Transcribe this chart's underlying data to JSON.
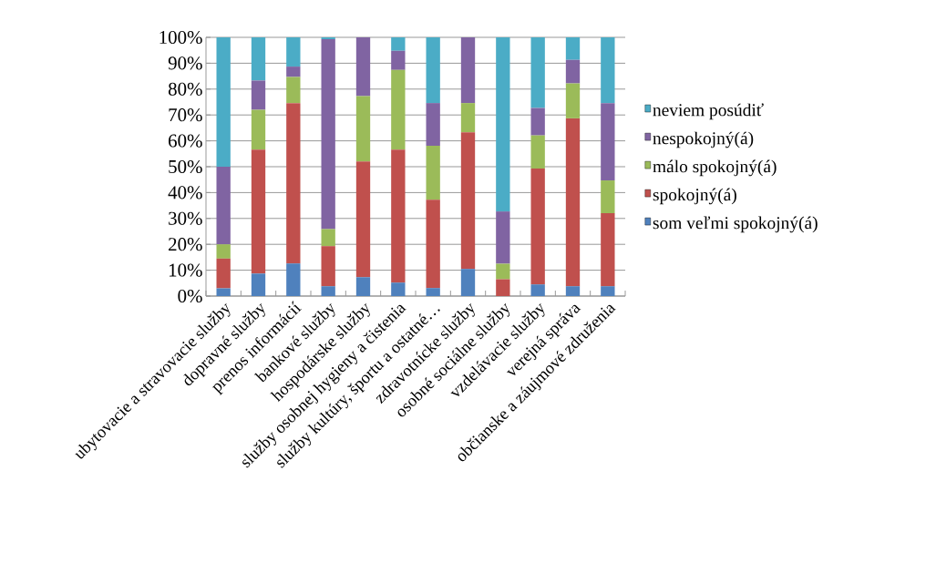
{
  "chart_data": {
    "type": "bar",
    "stacked": true,
    "categories": [
      "ubytovacie a stravovacie služby",
      "dopravné služby",
      "prenos informácií",
      "bankové služby",
      "hospodárske služby",
      "služby osobnej hygieny a čistenia",
      "služby kultúry, športu a ostatné…",
      "zdravotnícke služby",
      "osobné sociálne služby",
      "vzdelávacie služby",
      "verejná správa",
      "občianske a záujmové združenia"
    ],
    "series": [
      {
        "name": "som veľmi spokojný(á)",
        "color": "#4f81bd",
        "values": [
          3,
          8.7,
          12.6,
          3.8,
          7.3,
          5.2,
          3.1,
          10.5,
          0,
          4.5,
          3.8,
          3.8
        ]
      },
      {
        "name": "spokojný(á)",
        "color": "#c0504d",
        "values": [
          11.5,
          47.9,
          62,
          15.5,
          44.7,
          51.4,
          34.1,
          52.8,
          6.5,
          44.8,
          64.9,
          28.2
        ]
      },
      {
        "name": "málo spokojný(á)",
        "color": "#9bbb59",
        "values": [
          5.5,
          15.4,
          10.1,
          6.6,
          25.3,
          30.8,
          20.9,
          11.3,
          6,
          12.8,
          13.5,
          12.7
        ]
      },
      {
        "name": "nespokojný(á)",
        "color": "#8064a2",
        "values": [
          30,
          11.3,
          4,
          73.4,
          22.7,
          7.4,
          16.5,
          25.4,
          20.2,
          10.6,
          9.1,
          29.9
        ]
      },
      {
        "name": "neviem posúdiť",
        "color": "#4bacc6",
        "values": [
          50,
          16.7,
          11.3,
          0.7,
          0,
          5.2,
          25.4,
          0,
          67.3,
          27.3,
          8.7,
          25.4
        ]
      }
    ],
    "ylim": [
      0,
      100
    ],
    "yticks": [
      {
        "value": 0,
        "label": "0%"
      },
      {
        "value": 10,
        "label": "10%"
      },
      {
        "value": 20,
        "label": "20%"
      },
      {
        "value": 30,
        "label": "30%"
      },
      {
        "value": 40,
        "label": "40%"
      },
      {
        "value": 50,
        "label": "50%"
      },
      {
        "value": 60,
        "label": "60%"
      },
      {
        "value": 70,
        "label": "70%"
      },
      {
        "value": 80,
        "label": "80%"
      },
      {
        "value": 90,
        "label": "90%"
      },
      {
        "value": 100,
        "label": "100%"
      }
    ],
    "grid": "y",
    "legend": "right"
  }
}
